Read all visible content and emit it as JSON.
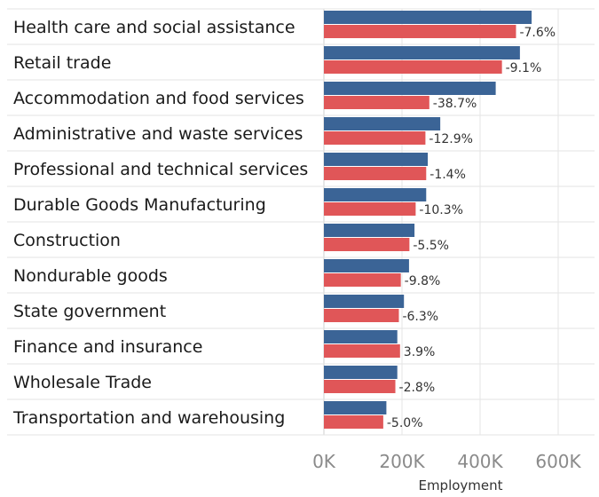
{
  "chart_data": {
    "type": "bar",
    "orientation": "horizontal",
    "title": "",
    "xlabel": "Employment",
    "ylabel": "",
    "xlim": [
      0,
      700000
    ],
    "xticks": [
      0,
      200000,
      400000,
      600000
    ],
    "xtick_labels": [
      "0K",
      "200K",
      "400K",
      "600K"
    ],
    "grid": true,
    "categories": [
      "Health care and social assistance",
      "Retail trade",
      "Accommodation and food services",
      "Administrative and waste services",
      "Professional and technical services",
      "Durable Goods Manufacturing",
      "Construction",
      "Nondurable goods",
      "State government",
      "Finance and insurance",
      "Wholesale Trade",
      "Transportation and warehousing"
    ],
    "series": [
      {
        "color": "#3b6496",
        "values": [
          532000,
          502000,
          440000,
          298000,
          266000,
          262000,
          232000,
          218000,
          205000,
          188000,
          188000,
          160000
        ]
      },
      {
        "color": "#e05658",
        "values": [
          492000,
          456000,
          270000,
          260000,
          262000,
          235000,
          219000,
          197000,
          192000,
          195000,
          183000,
          152000
        ]
      }
    ],
    "data_labels": [
      "-7.6%",
      "-9.1%",
      "-38.7%",
      "-12.9%",
      "-1.4%",
      "-10.3%",
      "-5.5%",
      "-9.8%",
      "-6.3%",
      "3.9%",
      "-2.8%",
      "-5.0%"
    ]
  }
}
